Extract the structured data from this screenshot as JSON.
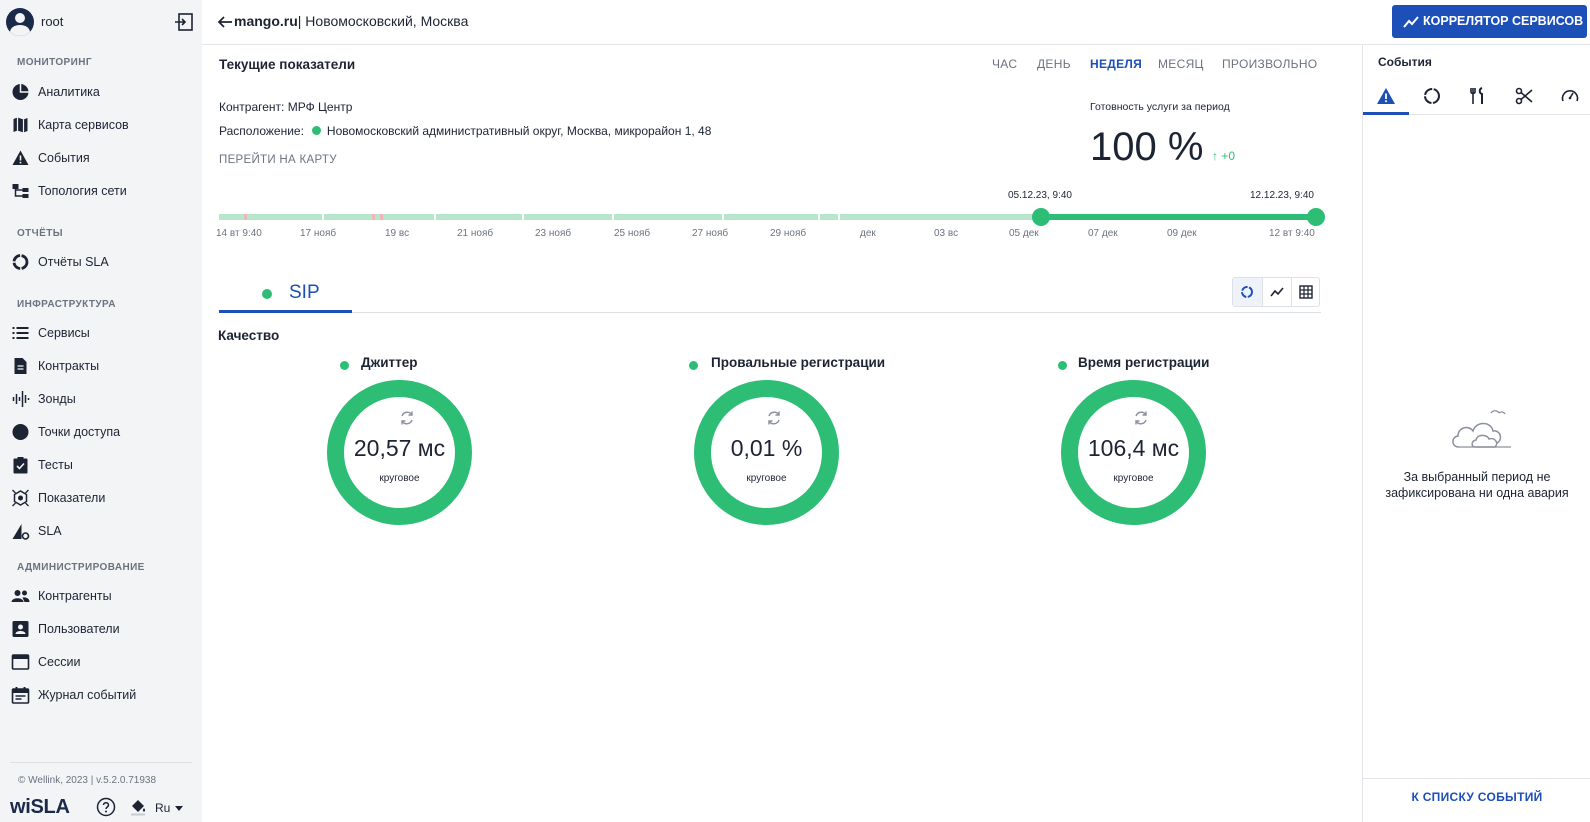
{
  "user": {
    "name": "root"
  },
  "sidebar": {
    "sections": {
      "monitoring": "МОНИТОРИНГ",
      "reports": "ОТЧЁТЫ",
      "infrastructure": "ИНФРАСТРУКТУРА",
      "administration": "АДМИНИСТРИРОВАНИЕ"
    },
    "items": [
      {
        "label": "Аналитика",
        "icon": "pie-chart-icon"
      },
      {
        "label": "Карта сервисов",
        "icon": "map-icon"
      },
      {
        "label": "События",
        "icon": "warning-icon"
      },
      {
        "label": "Топология сети",
        "icon": "topology-icon"
      },
      {
        "label": "Отчёты SLA",
        "icon": "donut-icon"
      },
      {
        "label": "Сервисы",
        "icon": "list-icon"
      },
      {
        "label": "Контракты",
        "icon": "document-icon"
      },
      {
        "label": "Зонды",
        "icon": "probe-icon"
      },
      {
        "label": "Точки доступа",
        "icon": "circle-icon"
      },
      {
        "label": "Тесты",
        "icon": "clipboard-check-icon"
      },
      {
        "label": "Показатели",
        "icon": "metrics-icon"
      },
      {
        "label": "SLA",
        "icon": "sla-icon"
      },
      {
        "label": "Контрагенты",
        "icon": "people-icon"
      },
      {
        "label": "Пользователи",
        "icon": "user-card-icon"
      },
      {
        "label": "Сессии",
        "icon": "window-icon"
      },
      {
        "label": "Журнал событий",
        "icon": "calendar-icon"
      }
    ],
    "copyright": "© Wellink, 2023 | v.5.2.0.71938",
    "logo": "wiSLA",
    "language": "Ru"
  },
  "header": {
    "site": "mango.ru",
    "location": "| Новомосковский, Москва",
    "correlator_label": "КОРРЕЛЯТОР СЕРВИСОВ"
  },
  "main": {
    "current_title": "Текущие показатели",
    "periods": [
      "ЧАС",
      "ДЕНЬ",
      "НЕДЕЛЯ",
      "МЕСЯЦ",
      "ПРОИЗВОЛЬНО"
    ],
    "active_period": "НЕДЕЛЯ",
    "counterparty": "Контрагент: МРФ Центр",
    "location_label": "Расположение:",
    "location_value": "Новомосковский административный округ, Москва, микрорайон 1, 48",
    "map_link": "ПЕРЕЙТИ НА КАРТУ",
    "readiness_label": "Готовность услуги за период",
    "readiness_value": "100 %",
    "readiness_delta": "↑ +0",
    "timeline": {
      "start_date": "05.12.23, 9:40",
      "end_date": "12.12.23, 9:40",
      "ticks": [
        "14 вт 9:40",
        "17 нояб",
        "19 вс",
        "21 нояб",
        "23 нояб",
        "25 нояб",
        "27 нояб",
        "29 нояб",
        "дек",
        "03 вс",
        "05 дек",
        "07 дек",
        "09 дек",
        "12 вт 9:40"
      ]
    },
    "service_tab": "SIP",
    "quality_title": "Качество",
    "metrics": [
      {
        "title": "Джиттер",
        "value": "20,57 мс",
        "kind": "круговое"
      },
      {
        "title": "Провальные регистрации",
        "value": "0,01 %",
        "kind": "круговое"
      },
      {
        "title": "Время регистрации",
        "value": "106,4 мс",
        "kind": "круговое"
      }
    ]
  },
  "events": {
    "title": "События",
    "empty_text": "За выбранный период не зафиксирована ни одна авария",
    "to_list": "К СПИСКУ СОБЫТИЙ"
  },
  "colors": {
    "accent": "#1c4fb8",
    "ok": "#2ebd75",
    "ok_light": "#b8e6cd",
    "sidebar_bg": "#f3f4f6"
  }
}
